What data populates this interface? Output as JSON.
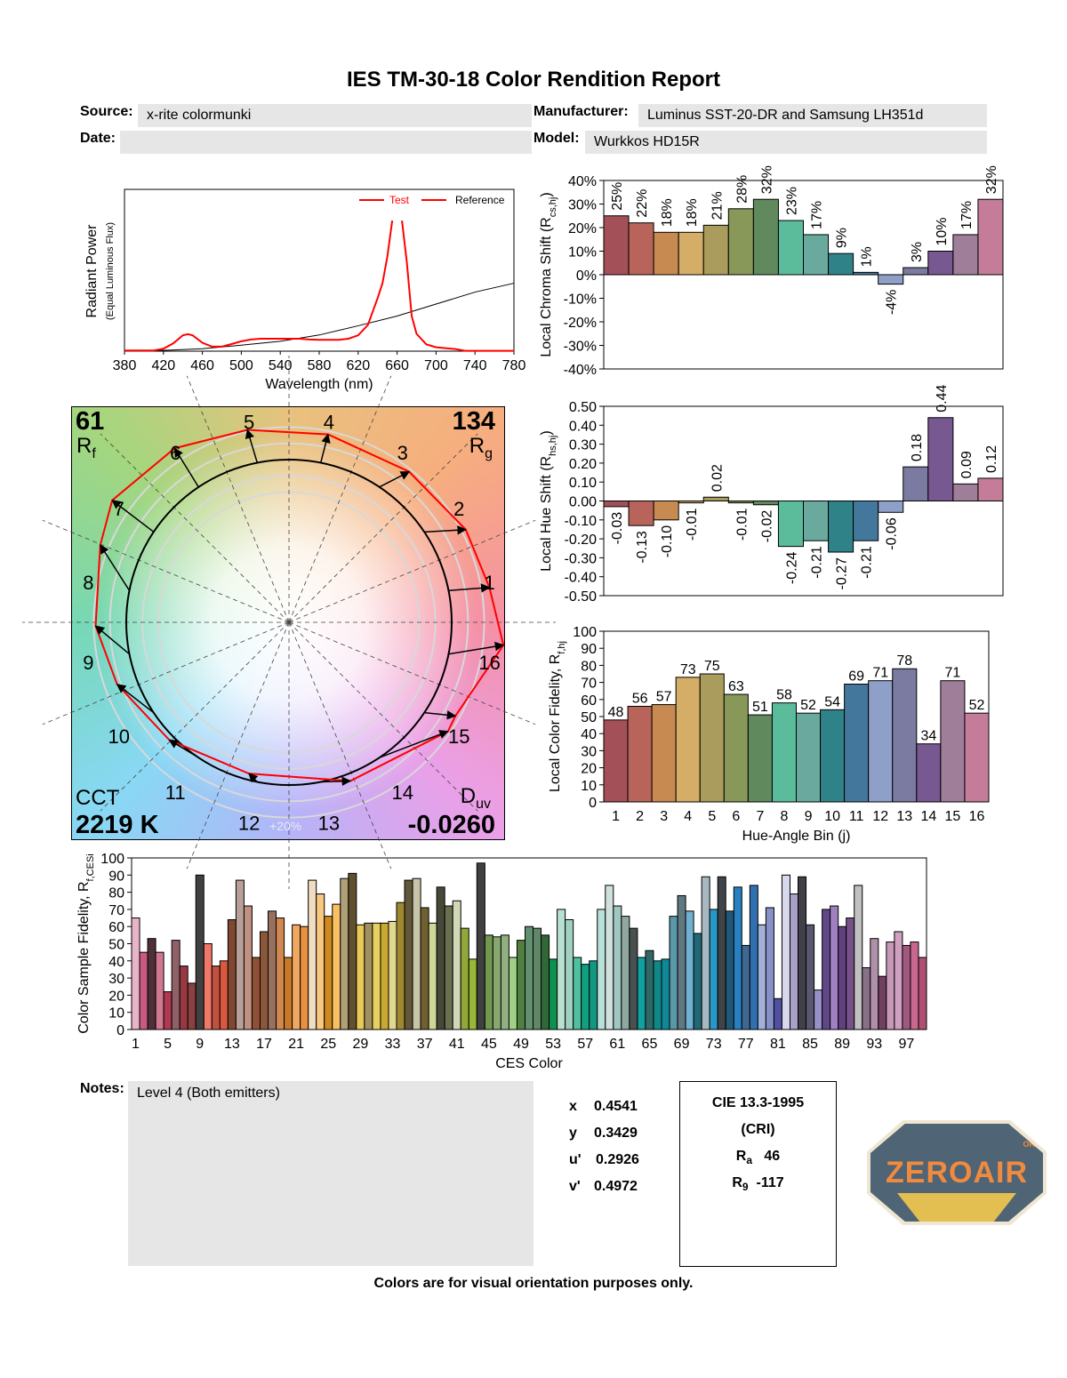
{
  "header": {
    "title": "IES TM-30-18 Color Rendition Report",
    "source_label": "Source:",
    "source_value": "x-rite colormunki",
    "manufacturer_label": "Manufacturer:",
    "manufacturer_value": "Luminus SST-20-DR and Samsung LH351d",
    "date_label": "Date:",
    "date_value": "",
    "model_label": "Model:",
    "model_value": "Wurkkos HD15R"
  },
  "vector_graphic": {
    "rf_value": "61",
    "rf_label": "R",
    "rf_sub": "f",
    "rg_value": "134",
    "rg_label": "R",
    "rg_sub": "g",
    "cct_label": "CCT",
    "cct_value": "2219 K",
    "duv_label": "D",
    "duv_sub": "uv",
    "duv_value": "-0.0260",
    "ring_label": "+20%",
    "bin_labels": [
      "1",
      "2",
      "3",
      "4",
      "5",
      "6",
      "7",
      "8",
      "9",
      "10",
      "11",
      "12",
      "13",
      "14",
      "15",
      "16"
    ],
    "test_color": "#ff0000",
    "reference_color": "#000000"
  },
  "chart_data": [
    {
      "id": "spectrum",
      "type": "line",
      "xlabel": "Wavelength (nm)",
      "ylabel": "Radiant Power",
      "ylabel_sub": "(Equal Luminous Flux)",
      "xlim": [
        380,
        780
      ],
      "ylim": [
        0,
        1
      ],
      "xticks": [
        380,
        420,
        460,
        500,
        540,
        580,
        620,
        660,
        700,
        740,
        780
      ],
      "legend": {
        "position": "top-right",
        "entries": [
          "Test",
          "Reference"
        ]
      },
      "series": [
        {
          "name": "Test",
          "color": "#ff0000",
          "points": [
            [
              380,
              0.004
            ],
            [
              410,
              0.004
            ],
            [
              420,
              0.015
            ],
            [
              430,
              0.048
            ],
            [
              440,
              0.098
            ],
            [
              445,
              0.105
            ],
            [
              450,
              0.098
            ],
            [
              460,
              0.052
            ],
            [
              470,
              0.028
            ],
            [
              480,
              0.028
            ],
            [
              490,
              0.044
            ],
            [
              500,
              0.061
            ],
            [
              510,
              0.072
            ],
            [
              520,
              0.077
            ],
            [
              540,
              0.077
            ],
            [
              560,
              0.077
            ],
            [
              570,
              0.072
            ],
            [
              580,
              0.07
            ],
            [
              600,
              0.07
            ],
            [
              610,
              0.077
            ],
            [
              620,
              0.098
            ],
            [
              630,
              0.162
            ],
            [
              640,
              0.328
            ],
            [
              645,
              0.42
            ],
            [
              650,
              0.585
            ],
            [
              655,
              0.807
            ],
            null,
            [
              665,
              0.807
            ],
            [
              670,
              0.549
            ],
            [
              675,
              0.217
            ],
            [
              680,
              0.107
            ],
            [
              690,
              0.042
            ],
            [
              700,
              0.024
            ],
            [
              720,
              0.013
            ],
            [
              730,
              0.002
            ],
            [
              780,
              0.002
            ]
          ]
        },
        {
          "name": "Reference",
          "color": "#000000",
          "points": [
            [
              380,
              0.0
            ],
            [
              420,
              0.005
            ],
            [
              460,
              0.015
            ],
            [
              500,
              0.037
            ],
            [
              540,
              0.061
            ],
            [
              580,
              0.1
            ],
            [
              620,
              0.157
            ],
            [
              660,
              0.217
            ],
            [
              700,
              0.291
            ],
            [
              740,
              0.365
            ],
            [
              780,
              0.42
            ]
          ]
        }
      ]
    },
    {
      "id": "chroma",
      "type": "bar",
      "ylabel": "Local Chroma Shift (R",
      "ylabel_sub": "cs,hj",
      "ylabel_end": ")",
      "ylim": [
        -40,
        40
      ],
      "yticks": [
        40,
        30,
        20,
        10,
        0,
        -10,
        -20,
        -30,
        -40
      ],
      "ytick_labels": [
        "40%",
        "30%",
        "20%",
        "10%",
        "0%",
        "-10%",
        "-20%",
        "-30%",
        "-40%"
      ],
      "categories": [
        "1",
        "2",
        "3",
        "4",
        "5",
        "6",
        "7",
        "8",
        "9",
        "10",
        "11",
        "12",
        "13",
        "14",
        "15",
        "16"
      ],
      "values": [
        25,
        22,
        18,
        18,
        21,
        28,
        32,
        23,
        17,
        9,
        1,
        -4,
        3,
        10,
        17,
        32
      ],
      "data_labels": [
        "25%",
        "22%",
        "18%",
        "18%",
        "21%",
        "28%",
        "32%",
        "23%",
        "17%",
        "9%",
        "1%",
        "-4%",
        "3%",
        "10%",
        "17%",
        "32%"
      ],
      "colors": [
        "#a35058",
        "#b8645a",
        "#c78a50",
        "#d4ae66",
        "#aa9c5c",
        "#889858",
        "#608a5e",
        "#5bbc9c",
        "#6aaa9e",
        "#2f8388",
        "#43789c",
        "#8fa0c8",
        "#7b7aa0",
        "#785890",
        "#9e7e98",
        "#c47c98"
      ]
    },
    {
      "id": "hue",
      "type": "bar",
      "ylabel": "Local Hue Shift (R",
      "ylabel_sub": "hs,hj",
      "ylabel_end": ")",
      "ylim": [
        -0.5,
        0.5
      ],
      "yticks": [
        0.5,
        0.4,
        0.3,
        0.2,
        0.1,
        0,
        -0.1,
        -0.2,
        -0.3,
        -0.4,
        -0.5
      ],
      "ytick_labels": [
        "0.50",
        "0.40",
        "0.30",
        "0.20",
        "0.10",
        "0.00",
        "-0.10",
        "-0.20",
        "-0.30",
        "-0.40",
        "-0.50"
      ],
      "categories": [
        "1",
        "2",
        "3",
        "4",
        "5",
        "6",
        "7",
        "8",
        "9",
        "10",
        "11",
        "12",
        "13",
        "14",
        "15",
        "16"
      ],
      "values": [
        -0.03,
        -0.13,
        -0.1,
        -0.01,
        0.02,
        -0.01,
        -0.02,
        -0.24,
        -0.21,
        -0.27,
        -0.21,
        -0.06,
        0.18,
        0.44,
        0.09,
        0.12
      ],
      "data_labels": [
        "-0.03",
        "-0.13",
        "-0.10",
        "-0.01",
        "0.02",
        "-0.01",
        "-0.02",
        "-0.24",
        "-0.21",
        "-0.27",
        "-0.21",
        "-0.06",
        "0.18",
        "0.44",
        "0.09",
        "0.12"
      ],
      "colors": [
        "#a35058",
        "#b8645a",
        "#c78a50",
        "#d4ae66",
        "#aa9c5c",
        "#889858",
        "#608a5e",
        "#5bbc9c",
        "#6aaa9e",
        "#2f8388",
        "#43789c",
        "#8fa0c8",
        "#7b7aa0",
        "#785890",
        "#9e7e98",
        "#c47c98"
      ]
    },
    {
      "id": "fidelity",
      "type": "bar",
      "ylabel": "Local Color Fidelity, R",
      "ylabel_sub": "f,hj",
      "ylabel_end": "",
      "xlabel": "Hue-Angle Bin (j)",
      "ylim": [
        0,
        100
      ],
      "yticks": [
        100,
        90,
        80,
        70,
        60,
        50,
        40,
        30,
        20,
        10,
        0
      ],
      "ytick_labels": [
        "100",
        "90",
        "80",
        "70",
        "60",
        "50",
        "40",
        "30",
        "20",
        "10",
        "0"
      ],
      "categories": [
        "1",
        "2",
        "3",
        "4",
        "5",
        "6",
        "7",
        "8",
        "9",
        "10",
        "11",
        "12",
        "13",
        "14",
        "15",
        "16"
      ],
      "values": [
        48,
        56,
        57,
        73,
        75,
        63,
        51,
        58,
        52,
        54,
        69,
        71,
        78,
        34,
        71,
        52
      ],
      "data_labels": [
        "48",
        "56",
        "57",
        "73",
        "75",
        "63",
        "51",
        "58",
        "52",
        "54",
        "69",
        "71",
        "78",
        "34",
        "71",
        "52"
      ],
      "colors": [
        "#a35058",
        "#b8645a",
        "#c78a50",
        "#d4ae66",
        "#aa9c5c",
        "#889858",
        "#608a5e",
        "#5bbc9c",
        "#6aaa9e",
        "#2f8388",
        "#43789c",
        "#8fa0c8",
        "#7b7aa0",
        "#785890",
        "#9e7e98",
        "#c47c98"
      ]
    },
    {
      "id": "ces",
      "type": "bar",
      "ylabel": "Color Sample Fidelity, R",
      "ylabel_sub": "f,CESi",
      "ylabel_end": "",
      "xlabel": "CES Color",
      "ylim": [
        0,
        100
      ],
      "yticks": [
        100,
        90,
        80,
        70,
        60,
        50,
        40,
        30,
        20,
        10,
        0
      ],
      "ytick_labels": [
        "100",
        "90",
        "80",
        "70",
        "60",
        "50",
        "40",
        "30",
        "20",
        "10",
        "0"
      ],
      "xtick_labels": [
        "1",
        "5",
        "9",
        "13",
        "17",
        "21",
        "25",
        "29",
        "33",
        "37",
        "41",
        "45",
        "49",
        "53",
        "57",
        "61",
        "65",
        "69",
        "73",
        "77",
        "81",
        "85",
        "89",
        "93",
        "97"
      ],
      "values": [
        65,
        45,
        53,
        45,
        22,
        52,
        37,
        27,
        90,
        50,
        37,
        40,
        64,
        87,
        72,
        42,
        57,
        69,
        65,
        42,
        61,
        60,
        87,
        79,
        66,
        73,
        88,
        91,
        61,
        62,
        62,
        62,
        63,
        74,
        87,
        88,
        71,
        62,
        83,
        72,
        75,
        59,
        41,
        97,
        55,
        54,
        55,
        42,
        52,
        60,
        59,
        55,
        41,
        70,
        64,
        42,
        38,
        40,
        70,
        84,
        72,
        66,
        59,
        42,
        46,
        40,
        41,
        66,
        78,
        69,
        56,
        89,
        70,
        89,
        69,
        83,
        49,
        84,
        61,
        71,
        18,
        90,
        79,
        89,
        61,
        23,
        70,
        72,
        60,
        65,
        84,
        36,
        53,
        31,
        51,
        57,
        49,
        51,
        42
      ],
      "colors": [
        "#e8b4c8",
        "#c85a80",
        "#503038",
        "#d07890",
        "#b03850",
        "#906068",
        "#983840",
        "#8a4040",
        "#404040",
        "#f07868",
        "#c05040",
        "#d85840",
        "#804830",
        "#b8a098",
        "#c09080",
        "#905038",
        "#8a5838",
        "#987060",
        "#d08850",
        "#c87828",
        "#f0a860",
        "#e89040",
        "#f0dcc0",
        "#f8c880",
        "#d08820",
        "#f8c060",
        "#b0a078",
        "#605030",
        "#e8c858",
        "#a09060",
        "#e8d060",
        "#c8a830",
        "#e0d890",
        "#a08830",
        "#605838",
        "#c8c4a8",
        "#706030",
        "#d0d898",
        "#484838",
        "#687050",
        "#d0d8b8",
        "#90a838",
        "#98b838",
        "#404040",
        "#709850",
        "#88a870",
        "#90b080",
        "#a0d088",
        "#508040",
        "#609070",
        "#608868",
        "#306838",
        "#109050",
        "#b8e0d0",
        "#a0d0c0",
        "#50c0a0",
        "#10a080",
        "#109880",
        "#b8e0d8",
        "#d0e0dc",
        "#a0c8c0",
        "#90a8a0",
        "#485050",
        "#10a0a0",
        "#306868",
        "#108888",
        "#108898",
        "#5898a8",
        "#607880",
        "#70b0d0",
        "#206878",
        "#a8b8c0",
        "#2898c8",
        "#404448",
        "#205878",
        "#2880c0",
        "#406890",
        "#3070b0",
        "#a0b0d8",
        "#8890c8",
        "#5050a0",
        "#d8d8ec",
        "#a8a0c8",
        "#404048",
        "#585870",
        "#9890c8",
        "#604888",
        "#a080c0",
        "#604080",
        "#785088",
        "#c0c0c0",
        "#887088",
        "#b090a8",
        "#704060",
        "#c898b8",
        "#d0a0c0",
        "#a05880",
        "#c86890",
        "#b05070"
      ]
    }
  ],
  "notes": {
    "label": "Notes:",
    "value": "Level 4 (Both emitters)"
  },
  "chromaticity": [
    {
      "label": "x",
      "value": "0.4541"
    },
    {
      "label": "y",
      "value": "0.3429"
    },
    {
      "label": "u'",
      "value": "0.2926"
    },
    {
      "label": "v'",
      "value": "0.4972"
    }
  ],
  "cri": {
    "title": "CIE 13.3-1995",
    "subtitle": "(CRI)",
    "ra_label": "R",
    "ra_sub": "a",
    "ra_value": "46",
    "r9_label": "R",
    "r9_sub": "9",
    "r9_value": "-117"
  },
  "footer": "Colors are for visual orientation purposes only.",
  "watermark": {
    "text": "ZEROAIR",
    "suffix": "ORG",
    "colors": {
      "badge": "#4f6475",
      "text": "#f08a3e",
      "stripe": "#f2c94c"
    }
  }
}
